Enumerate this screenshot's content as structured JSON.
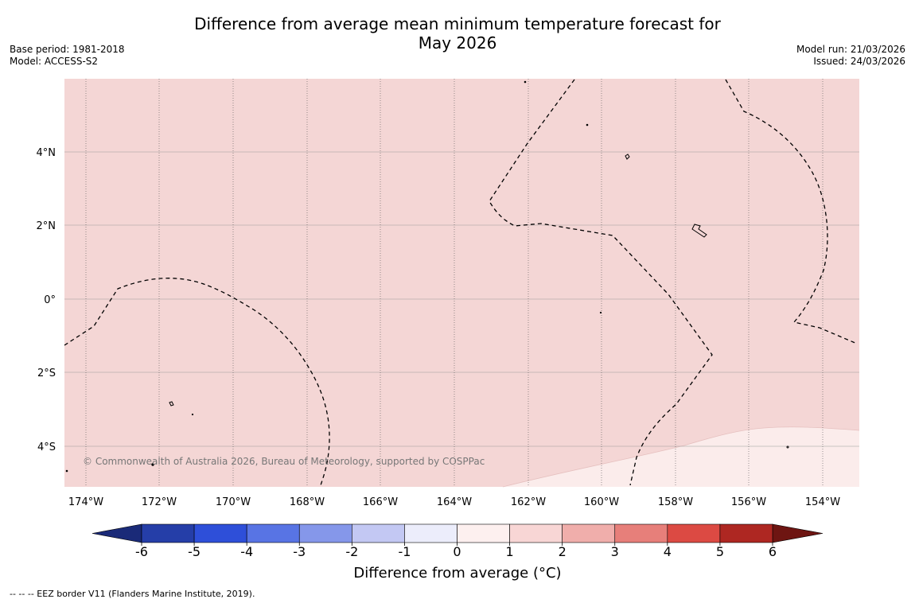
{
  "title_line1": "Difference from average mean minimum temperature forecast for",
  "title_line2": "May 2026",
  "meta_left": {
    "base_period": "Base period: 1981-2018",
    "model": "Model: ACCESS-S2"
  },
  "meta_right": {
    "model_run": "Model run: 21/03/2026",
    "issued": "Issued: 24/03/2026"
  },
  "copyright": "© Commonwealth of Australia 2026, Bureau of Meteorology, supported by COSPPac",
  "x_ticks": [
    "174°W",
    "172°W",
    "170°W",
    "168°W",
    "166°W",
    "164°W",
    "162°W",
    "160°W",
    "158°W",
    "156°W",
    "154°W"
  ],
  "y_ticks": [
    "4°N",
    "2°N",
    "0°",
    "2°S",
    "4°S"
  ],
  "colorbar": {
    "label": "Difference from average (°C)",
    "ticks": [
      "-6",
      "-5",
      "-4",
      "-3",
      "-2",
      "-1",
      "0",
      "1",
      "2",
      "3",
      "4",
      "5",
      "6"
    ],
    "colors": [
      "#253ea8",
      "#2e4fd9",
      "#5874e4",
      "#8597ea",
      "#c3c8f3",
      "#ecedfb",
      "#fdf0ef",
      "#f8d6d5",
      "#f0aeab",
      "#e77f7a",
      "#dc4a43",
      "#ae2722"
    ],
    "under_color": "#1a2a78",
    "over_color": "#6e1512"
  },
  "map_fill": {
    "main": "#f4d6d5",
    "light": "#fbeceb"
  },
  "footer": "--  --  -- EEZ border V11 (Flanders Marine Institute, 2019)."
}
